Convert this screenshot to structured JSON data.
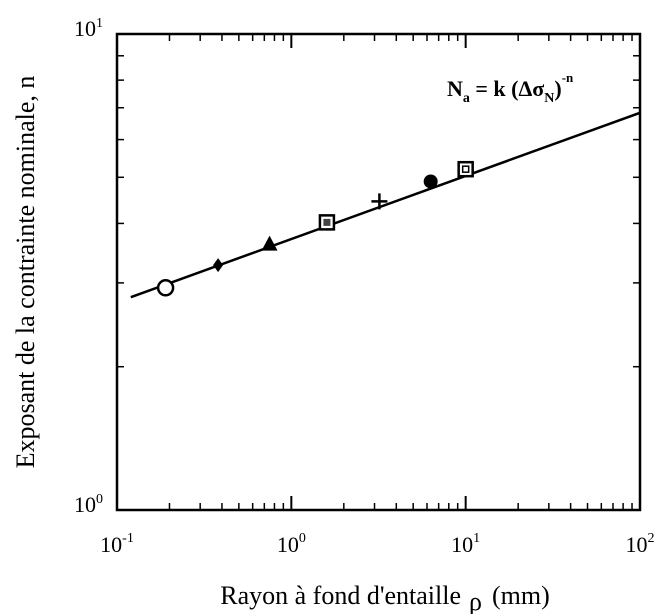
{
  "chart_data": {
    "type": "scatter",
    "xscale": "log",
    "yscale": "log",
    "xlim": [
      0.1,
      100
    ],
    "ylim": [
      1,
      10
    ],
    "xlabel": "Rayon à fond d'entaille",
    "xlabel_symbol": "ρ",
    "xlabel_unit": "(mm)",
    "ylabel": "Exposant de la contrainte nominale, n",
    "x_ticks": [
      {
        "base": "10",
        "exp": "-1",
        "value": 0.1
      },
      {
        "base": "10",
        "exp": "0",
        "value": 1
      },
      {
        "base": "10",
        "exp": "1",
        "value": 10
      },
      {
        "base": "10",
        "exp": "2",
        "value": 100
      }
    ],
    "y_ticks": [
      {
        "base": "10",
        "exp": "0",
        "value": 1
      },
      {
        "base": "10",
        "exp": "1",
        "value": 10
      }
    ],
    "points": [
      {
        "x": 0.19,
        "y": 2.93,
        "marker": "open-circle"
      },
      {
        "x": 0.38,
        "y": 3.27,
        "marker": "filled-diamond"
      },
      {
        "x": 0.75,
        "y": 3.61,
        "marker": "filled-triangle"
      },
      {
        "x": 1.6,
        "y": 4.02,
        "marker": "boxed-square"
      },
      {
        "x": 3.2,
        "y": 4.45,
        "marker": "plus"
      },
      {
        "x": 6.3,
        "y": 4.9,
        "marker": "filled-circle"
      },
      {
        "x": 10,
        "y": 5.2,
        "marker": "boxed-square-open"
      }
    ],
    "fit_line": {
      "x": [
        0.12,
        100
      ],
      "y": [
        2.8,
        6.83
      ]
    },
    "annotation": {
      "N": "N",
      "N_sub": "a",
      "rest": " = k (",
      "delta": "Δ",
      "sigma": "σ",
      "sigma_sub": "N",
      "close": ")",
      "exp": "-n"
    },
    "grid": false,
    "legend": "none"
  }
}
